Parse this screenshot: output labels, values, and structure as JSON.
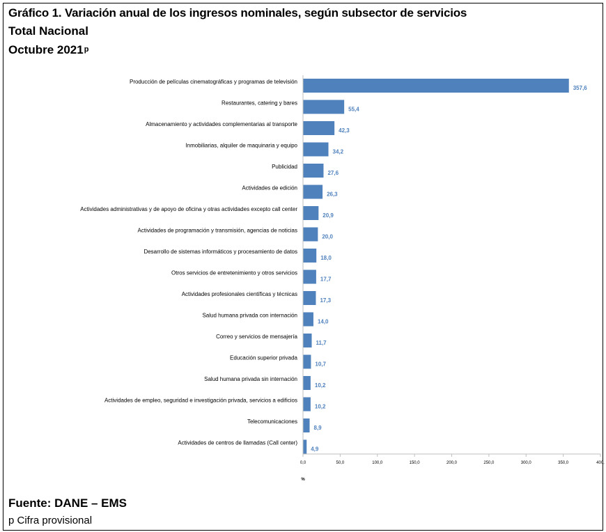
{
  "header": {
    "title": "Gráfico 1. Variación anual de los ingresos nominales, según subsector de servicios",
    "subtitle": "Total Nacional",
    "period": "Octubre 2021",
    "period_mark": "p"
  },
  "footer": {
    "source": "Fuente: DANE – EMS",
    "note": "p Cifra provisional"
  },
  "colors": {
    "bar": "#4f81bd",
    "value_label": "#4f81bd",
    "axis": "#bfbfbf"
  },
  "chart_data": {
    "type": "bar",
    "orientation": "horizontal",
    "categories": [
      "Producción de películas cinematográficas y programas de televisión",
      "Restaurantes, catering y bares",
      "Almacenamiento y actividades complementarias al transporte",
      "Inmobiliarias, alquiler de maquinaria y equipo",
      "Publicidad",
      "Actividades de edición",
      "Actividades administrativas y de apoyo de oficina y otras actividades excepto call center",
      "Actividades de programación y transmisión,  agencias de noticias",
      "Desarrollo de sistemas informáticos y procesamiento de datos",
      "Otros servicios de entretenimiento y otros servicios",
      "Actividades profesionales científicas y técnicas",
      "Salud humana privada con internación",
      "Correo y servicios de mensajería",
      "Educación superior privada",
      "Salud humana privada sin internación",
      "Actividades de empleo, seguridad e investigación privada, servicios a edificios",
      "Telecomunicaciones",
      "Actividades de centros de llamadas (Call center)"
    ],
    "values": [
      357.6,
      55.4,
      42.3,
      34.2,
      27.6,
      26.3,
      20.9,
      20.0,
      18.0,
      17.7,
      17.3,
      14.0,
      11.7,
      10.7,
      10.2,
      10.2,
      8.9,
      4.9
    ],
    "value_labels": [
      "357,6",
      "55,4",
      "42,3",
      "34,2",
      "27,6",
      "26,3",
      "20,9",
      "20,0",
      "18,0",
      "17,7",
      "17,3",
      "14,0",
      "11,7",
      "10,7",
      "10,2",
      "10,2",
      "8,9",
      "4,9"
    ],
    "xlim": [
      0,
      400
    ],
    "xticks": [
      0,
      50,
      100,
      150,
      200,
      250,
      300,
      350,
      400
    ],
    "xtick_labels": [
      "0,0",
      "50,0",
      "100,0",
      "150,0",
      "200,0",
      "250,0",
      "300,0",
      "350,0",
      "400,"
    ],
    "xlabel": "%",
    "grid": false,
    "legend": "none"
  }
}
